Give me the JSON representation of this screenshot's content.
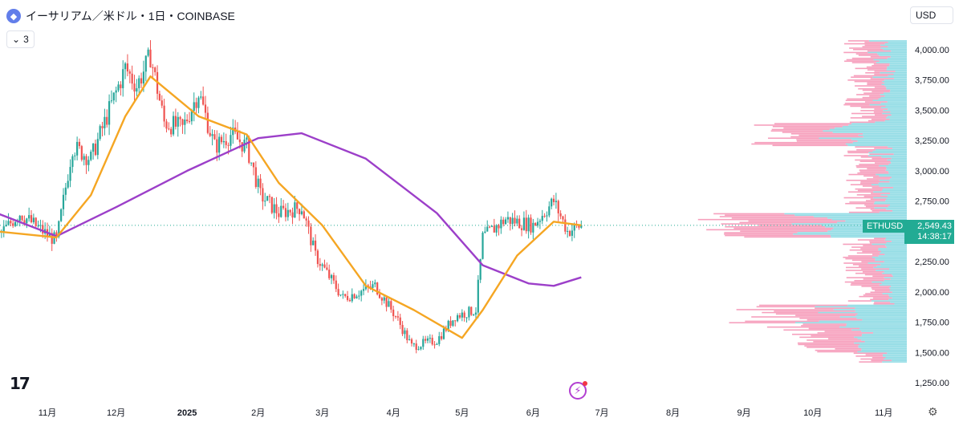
{
  "header": {
    "title": "イーサリアム／米ドル・1日・COINBASE",
    "indicator_count": "3",
    "currency": "USD"
  },
  "price_tag": {
    "symbol": "ETHUSD",
    "price": "2,549.43",
    "countdown": "14:38:17"
  },
  "colors": {
    "up": "#26a69a",
    "down": "#ef5350",
    "ma_fast": "#f5a623",
    "ma_slow": "#9c3fc9",
    "vp_up": "#7fd6e0",
    "vp_down": "#f48fb1",
    "last_price": "#22ab94"
  },
  "chart_data": {
    "type": "candlestick",
    "y_axis": {
      "ticks": [
        1250,
        1500,
        1750,
        2000,
        2250,
        2500,
        2750,
        3000,
        3250,
        3500,
        3750,
        4000
      ],
      "tick_labels": [
        "1,250.00",
        "1,500.00",
        "1,750.00",
        "2,000.00",
        "2,250.00",
        "",
        "2,750.00",
        "3,000.00",
        "3,250.00",
        "3,500.00",
        "3,750.00",
        "4,000.00"
      ],
      "range": [
        1150,
        4150
      ]
    },
    "x_axis": {
      "labels": [
        "11月",
        "12月",
        "2025",
        "2月",
        "3月",
        "4月",
        "5月",
        "6月",
        "7月",
        "8月",
        "9月",
        "10月",
        "11月"
      ],
      "label_dates": [
        "2024-11-01",
        "2024-12-01",
        "2025-01-01",
        "2025-02-01",
        "2025-03-01",
        "2025-04-01",
        "2025-05-01",
        "2025-06-01",
        "2025-07-01",
        "2025-08-01",
        "2025-09-01",
        "2025-10-01",
        "2025-11-01"
      ]
    },
    "price_path": [
      [
        "2024-10-10",
        2450
      ],
      [
        "2024-10-20",
        2650
      ],
      [
        "2024-10-30",
        2500
      ],
      [
        "2024-11-05",
        2420
      ],
      [
        "2024-11-12",
        3200
      ],
      [
        "2024-11-20",
        3100
      ],
      [
        "2024-11-28",
        3500
      ],
      [
        "2024-12-05",
        3850
      ],
      [
        "2024-12-10",
        3700
      ],
      [
        "2024-12-16",
        3950
      ],
      [
        "2024-12-22",
        3400
      ],
      [
        "2024-12-30",
        3350
      ],
      [
        "2025-01-06",
        3650
      ],
      [
        "2025-01-13",
        3200
      ],
      [
        "2025-01-20",
        3300
      ],
      [
        "2025-01-27",
        3200
      ],
      [
        "2025-02-02",
        2800
      ],
      [
        "2025-02-10",
        2650
      ],
      [
        "2025-02-20",
        2700
      ],
      [
        "2025-02-26",
        2300
      ],
      [
        "2025-03-10",
        1950
      ],
      [
        "2025-03-24",
        2050
      ],
      [
        "2025-04-02",
        1800
      ],
      [
        "2025-04-09",
        1550
      ],
      [
        "2025-04-20",
        1600
      ],
      [
        "2025-04-28",
        1800
      ],
      [
        "2025-05-07",
        1850
      ],
      [
        "2025-05-10",
        2450
      ],
      [
        "2025-05-20",
        2600
      ],
      [
        "2025-06-01",
        2550
      ],
      [
        "2025-06-10",
        2750
      ],
      [
        "2025-06-16",
        2500
      ],
      [
        "2025-06-22",
        2549
      ]
    ],
    "ma_fast": [
      [
        "2024-10-10",
        2500
      ],
      [
        "2024-11-05",
        2450
      ],
      [
        "2024-11-20",
        2800
      ],
      [
        "2024-12-05",
        3450
      ],
      [
        "2024-12-16",
        3780
      ],
      [
        "2025-01-06",
        3450
      ],
      [
        "2025-01-27",
        3300
      ],
      [
        "2025-02-10",
        2900
      ],
      [
        "2025-03-01",
        2550
      ],
      [
        "2025-03-20",
        2050
      ],
      [
        "2025-04-10",
        1850
      ],
      [
        "2025-05-01",
        1620
      ],
      [
        "2025-05-10",
        1850
      ],
      [
        "2025-05-25",
        2300
      ],
      [
        "2025-06-10",
        2580
      ],
      [
        "2025-06-22",
        2550
      ]
    ],
    "ma_slow": [
      [
        "2024-10-10",
        2650
      ],
      [
        "2024-11-05",
        2460
      ],
      [
        "2024-12-01",
        2700
      ],
      [
        "2025-01-01",
        3000
      ],
      [
        "2025-02-01",
        3270
      ],
      [
        "2025-02-20",
        3310
      ],
      [
        "2025-03-20",
        3100
      ],
      [
        "2025-04-20",
        2650
      ],
      [
        "2025-05-10",
        2220
      ],
      [
        "2025-05-30",
        2070
      ],
      [
        "2025-06-10",
        2050
      ],
      [
        "2025-06-22",
        2120
      ]
    ],
    "last_price": 2549.43
  }
}
